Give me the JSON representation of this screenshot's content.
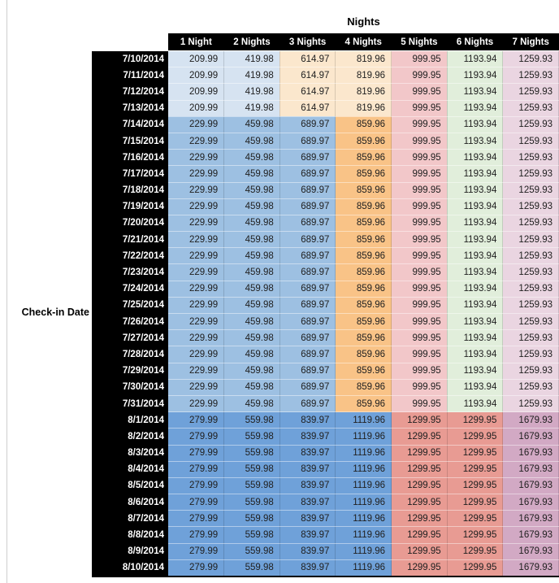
{
  "header": {
    "title": "Nights",
    "row_axis_label": "Check-in Date"
  },
  "styles": {
    "header_bg": "#000000",
    "header_text": "#ffffff",
    "cell_text": "#202020",
    "palette": {
      "light_blue": "#d6e3f1",
      "mid_blue": "#9dc0e2",
      "strong_blue": "#6fa1d9",
      "light_orange": "#fbe7cd",
      "orange": "#f9c387",
      "light_red": "#f2c7c9",
      "red": "#e89b93",
      "light_green": "#e1eedb",
      "light_purple": "#ead5e1",
      "mauve": "#d2a9c4"
    },
    "band_colors": {
      "early": [
        "light_blue",
        "light_blue",
        "light_orange",
        "light_orange",
        "light_red",
        "light_green",
        "light_purple"
      ],
      "mid": [
        "mid_blue",
        "mid_blue",
        "mid_blue",
        "orange",
        "light_red",
        "light_green",
        "light_purple"
      ],
      "late": [
        "strong_blue",
        "strong_blue",
        "strong_blue",
        "strong_blue",
        "red",
        "red",
        "mauve"
      ]
    }
  },
  "chart_data": {
    "type": "table",
    "title": "Nights",
    "row_label": "Check-in Date",
    "columns": [
      "1 Night",
      "2 Nights",
      "3 Nights",
      "4 Nights",
      "5 Nights",
      "6 Nights",
      "7 Nights"
    ],
    "rows": [
      {
        "date": "7/10/2014",
        "band": "early",
        "values": [
          "209.99",
          "419.98",
          "614.97",
          "819.96",
          "999.95",
          "1193.94",
          "1259.93"
        ]
      },
      {
        "date": "7/11/2014",
        "band": "early",
        "values": [
          "209.99",
          "419.98",
          "614.97",
          "819.96",
          "999.95",
          "1193.94",
          "1259.93"
        ]
      },
      {
        "date": "7/12/2014",
        "band": "early",
        "values": [
          "209.99",
          "419.98",
          "614.97",
          "819.96",
          "999.95",
          "1193.94",
          "1259.93"
        ]
      },
      {
        "date": "7/13/2014",
        "band": "early",
        "values": [
          "209.99",
          "419.98",
          "614.97",
          "819.96",
          "999.95",
          "1193.94",
          "1259.93"
        ]
      },
      {
        "date": "7/14/2014",
        "band": "mid",
        "values": [
          "229.99",
          "459.98",
          "689.97",
          "859.96",
          "999.95",
          "1193.94",
          "1259.93"
        ]
      },
      {
        "date": "7/15/2014",
        "band": "mid",
        "values": [
          "229.99",
          "459.98",
          "689.97",
          "859.96",
          "999.95",
          "1193.94",
          "1259.93"
        ]
      },
      {
        "date": "7/16/2014",
        "band": "mid",
        "values": [
          "229.99",
          "459.98",
          "689.97",
          "859.96",
          "999.95",
          "1193.94",
          "1259.93"
        ]
      },
      {
        "date": "7/17/2014",
        "band": "mid",
        "values": [
          "229.99",
          "459.98",
          "689.97",
          "859.96",
          "999.95",
          "1193.94",
          "1259.93"
        ]
      },
      {
        "date": "7/18/2014",
        "band": "mid",
        "values": [
          "229.99",
          "459.98",
          "689.97",
          "859.96",
          "999.95",
          "1193.94",
          "1259.93"
        ]
      },
      {
        "date": "7/19/2014",
        "band": "mid",
        "values": [
          "229.99",
          "459.98",
          "689.97",
          "859.96",
          "999.95",
          "1193.94",
          "1259.93"
        ]
      },
      {
        "date": "7/20/2014",
        "band": "mid",
        "values": [
          "229.99",
          "459.98",
          "689.97",
          "859.96",
          "999.95",
          "1193.94",
          "1259.93"
        ]
      },
      {
        "date": "7/21/2014",
        "band": "mid",
        "values": [
          "229.99",
          "459.98",
          "689.97",
          "859.96",
          "999.95",
          "1193.94",
          "1259.93"
        ]
      },
      {
        "date": "7/22/2014",
        "band": "mid",
        "values": [
          "229.99",
          "459.98",
          "689.97",
          "859.96",
          "999.95",
          "1193.94",
          "1259.93"
        ]
      },
      {
        "date": "7/23/2014",
        "band": "mid",
        "values": [
          "229.99",
          "459.98",
          "689.97",
          "859.96",
          "999.95",
          "1193.94",
          "1259.93"
        ]
      },
      {
        "date": "7/24/2014",
        "band": "mid",
        "values": [
          "229.99",
          "459.98",
          "689.97",
          "859.96",
          "999.95",
          "1193.94",
          "1259.93"
        ]
      },
      {
        "date": "7/25/2014",
        "band": "mid",
        "values": [
          "229.99",
          "459.98",
          "689.97",
          "859.96",
          "999.95",
          "1193.94",
          "1259.93"
        ]
      },
      {
        "date": "7/26/2014",
        "band": "mid",
        "values": [
          "229.99",
          "459.98",
          "689.97",
          "859.96",
          "999.95",
          "1193.94",
          "1259.93"
        ]
      },
      {
        "date": "7/27/2014",
        "band": "mid",
        "values": [
          "229.99",
          "459.98",
          "689.97",
          "859.96",
          "999.95",
          "1193.94",
          "1259.93"
        ]
      },
      {
        "date": "7/28/2014",
        "band": "mid",
        "values": [
          "229.99",
          "459.98",
          "689.97",
          "859.96",
          "999.95",
          "1193.94",
          "1259.93"
        ]
      },
      {
        "date": "7/29/2014",
        "band": "mid",
        "values": [
          "229.99",
          "459.98",
          "689.97",
          "859.96",
          "999.95",
          "1193.94",
          "1259.93"
        ]
      },
      {
        "date": "7/30/2014",
        "band": "mid",
        "values": [
          "229.99",
          "459.98",
          "689.97",
          "859.96",
          "999.95",
          "1193.94",
          "1259.93"
        ]
      },
      {
        "date": "7/31/2014",
        "band": "mid",
        "values": [
          "229.99",
          "459.98",
          "689.97",
          "859.96",
          "999.95",
          "1193.94",
          "1259.93"
        ]
      },
      {
        "date": "8/1/2014",
        "band": "late",
        "values": [
          "279.99",
          "559.98",
          "839.97",
          "1119.96",
          "1299.95",
          "1299.95",
          "1679.93"
        ]
      },
      {
        "date": "8/2/2014",
        "band": "late",
        "values": [
          "279.99",
          "559.98",
          "839.97",
          "1119.96",
          "1299.95",
          "1299.95",
          "1679.93"
        ]
      },
      {
        "date": "8/3/2014",
        "band": "late",
        "values": [
          "279.99",
          "559.98",
          "839.97",
          "1119.96",
          "1299.95",
          "1299.95",
          "1679.93"
        ]
      },
      {
        "date": "8/4/2014",
        "band": "late",
        "values": [
          "279.99",
          "559.98",
          "839.97",
          "1119.96",
          "1299.95",
          "1299.95",
          "1679.93"
        ]
      },
      {
        "date": "8/5/2014",
        "band": "late",
        "values": [
          "279.99",
          "559.98",
          "839.97",
          "1119.96",
          "1299.95",
          "1299.95",
          "1679.93"
        ]
      },
      {
        "date": "8/6/2014",
        "band": "late",
        "values": [
          "279.99",
          "559.98",
          "839.97",
          "1119.96",
          "1299.95",
          "1299.95",
          "1679.93"
        ]
      },
      {
        "date": "8/7/2014",
        "band": "late",
        "values": [
          "279.99",
          "559.98",
          "839.97",
          "1119.96",
          "1299.95",
          "1299.95",
          "1679.93"
        ]
      },
      {
        "date": "8/8/2014",
        "band": "late",
        "values": [
          "279.99",
          "559.98",
          "839.97",
          "1119.96",
          "1299.95",
          "1299.95",
          "1679.93"
        ]
      },
      {
        "date": "8/9/2014",
        "band": "late",
        "values": [
          "279.99",
          "559.98",
          "839.97",
          "1119.96",
          "1299.95",
          "1299.95",
          "1679.93"
        ]
      },
      {
        "date": "8/10/2014",
        "band": "late",
        "values": [
          "279.99",
          "559.98",
          "839.97",
          "1119.96",
          "1299.95",
          "1299.95",
          "1679.93"
        ]
      }
    ]
  }
}
